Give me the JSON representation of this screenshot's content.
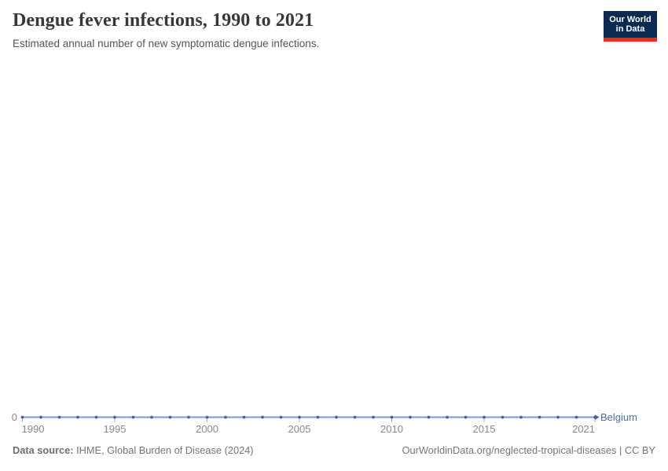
{
  "header": {
    "title": "Dengue fever infections, 1990 to 2021",
    "subtitle": "Estimated annual number of new symptomatic dengue infections."
  },
  "logo": {
    "text": "Our World\nin Data",
    "background_color": "#0a2a51",
    "accent_color": "#d0342c"
  },
  "axis": {
    "zero_label": "0"
  },
  "chart_data": {
    "type": "line",
    "title": "Dengue fever infections, 1990 to 2021",
    "subtitle": "Estimated annual number of new symptomatic dengue infections.",
    "x": [
      1990,
      1991,
      1992,
      1993,
      1994,
      1995,
      1996,
      1997,
      1998,
      1999,
      2000,
      2001,
      2002,
      2003,
      2004,
      2005,
      2006,
      2007,
      2008,
      2009,
      2010,
      2011,
      2012,
      2013,
      2014,
      2015,
      2016,
      2017,
      2018,
      2019,
      2020,
      2021
    ],
    "series": [
      {
        "name": "Belgium",
        "color": "#4c70b5",
        "line_color": "#7e9bd0",
        "marker_color": "#3d63ab",
        "values": [
          0,
          0,
          0,
          0,
          0,
          0,
          0,
          0,
          0,
          0,
          0,
          0,
          0,
          0,
          0,
          0,
          0,
          0,
          0,
          0,
          0,
          0,
          0,
          0,
          0,
          0,
          0,
          0,
          0,
          0,
          0,
          0
        ]
      }
    ],
    "xlim": [
      1990,
      2021
    ],
    "ylim": [
      0,
      1
    ],
    "x_ticks": [
      1990,
      1995,
      2000,
      2005,
      2010,
      2015,
      2021
    ],
    "y_ticks": [
      0
    ],
    "grid": false,
    "legend_position": "end-of-line"
  },
  "footer": {
    "source_label": "Data source:",
    "source_text": "IHME, Global Burden of Disease (2024)",
    "right_text": "OurWorldinData.org/neglected-tropical-diseases | CC BY"
  }
}
